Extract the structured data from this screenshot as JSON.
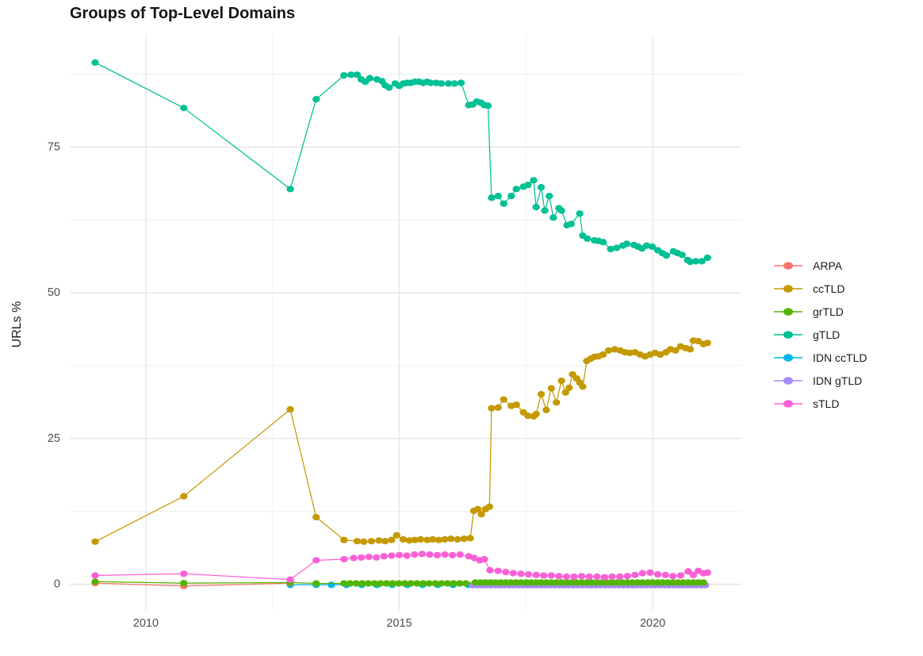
{
  "chart_data": {
    "type": "line",
    "title": "Groups of Top-Level Domains",
    "xlabel": "",
    "ylabel": "URLs %",
    "grid": true,
    "legend_position": "right",
    "x_axis": {
      "range": [
        2008.5,
        2021.75
      ],
      "major_ticks": [
        2010,
        2015,
        2020
      ],
      "minor_ticks": [
        2012.5,
        2017.5
      ],
      "tick_labels": [
        "2010",
        "2015",
        "2020"
      ]
    },
    "y_axis": {
      "range": [
        -4.55,
        94.1
      ],
      "major_ticks": [
        0,
        25,
        50,
        75
      ],
      "minor_ticks": [
        12.5,
        37.5,
        62.5,
        87.5
      ],
      "tick_labels": [
        "0",
        "25",
        "50",
        "75"
      ]
    },
    "draw_order": [
      "IDN ccTLD",
      "ARPA",
      "IDN gTLD",
      "grTLD",
      "gTLD",
      "ccTLD",
      "sTLD"
    ],
    "series": [
      {
        "name": "ARPA",
        "color": "#F8766D",
        "points": [
          [
            2009.0,
            0.2
          ],
          [
            2010.75,
            -0.3
          ],
          [
            2012.85,
            0.2
          ]
        ]
      },
      {
        "name": "ccTLD",
        "color": "#C49A00",
        "points": [
          [
            2009.0,
            7.3
          ],
          [
            2010.75,
            15.1
          ],
          [
            2012.85,
            30.0
          ],
          [
            2013.36,
            11.5
          ],
          [
            2013.91,
            7.6
          ],
          [
            2014.17,
            7.4
          ],
          [
            2014.3,
            7.3
          ],
          [
            2014.45,
            7.4
          ],
          [
            2014.6,
            7.5
          ],
          [
            2014.72,
            7.4
          ],
          [
            2014.85,
            7.6
          ],
          [
            2014.95,
            8.4
          ],
          [
            2015.08,
            7.7
          ],
          [
            2015.2,
            7.5
          ],
          [
            2015.31,
            7.6
          ],
          [
            2015.42,
            7.7
          ],
          [
            2015.55,
            7.6
          ],
          [
            2015.66,
            7.7
          ],
          [
            2015.78,
            7.6
          ],
          [
            2015.9,
            7.7
          ],
          [
            2016.02,
            7.8
          ],
          [
            2016.15,
            7.7
          ],
          [
            2016.28,
            7.8
          ],
          [
            2016.4,
            7.9
          ],
          [
            2016.47,
            12.6
          ],
          [
            2016.55,
            12.9
          ],
          [
            2016.62,
            12.0
          ],
          [
            2016.7,
            12.9
          ],
          [
            2016.78,
            13.3
          ],
          [
            2016.82,
            30.2
          ],
          [
            2016.95,
            30.3
          ],
          [
            2017.06,
            31.7
          ],
          [
            2017.21,
            30.6
          ],
          [
            2017.31,
            30.8
          ],
          [
            2017.45,
            29.5
          ],
          [
            2017.54,
            28.9
          ],
          [
            2017.65,
            28.8
          ],
          [
            2017.7,
            29.2
          ],
          [
            2017.8,
            32.6
          ],
          [
            2017.9,
            29.9
          ],
          [
            2018.0,
            33.6
          ],
          [
            2018.1,
            31.2
          ],
          [
            2018.2,
            34.9
          ],
          [
            2018.28,
            32.9
          ],
          [
            2018.35,
            33.7
          ],
          [
            2018.42,
            36.0
          ],
          [
            2018.5,
            35.3
          ],
          [
            2018.56,
            34.6
          ],
          [
            2018.62,
            33.9
          ],
          [
            2018.7,
            38.3
          ],
          [
            2018.78,
            38.7
          ],
          [
            2018.85,
            39.0
          ],
          [
            2018.93,
            39.1
          ],
          [
            2019.02,
            39.4
          ],
          [
            2019.13,
            40.1
          ],
          [
            2019.25,
            40.3
          ],
          [
            2019.36,
            40.1
          ],
          [
            2019.45,
            39.8
          ],
          [
            2019.55,
            39.7
          ],
          [
            2019.65,
            39.8
          ],
          [
            2019.75,
            39.4
          ],
          [
            2019.85,
            39.1
          ],
          [
            2019.95,
            39.4
          ],
          [
            2020.05,
            39.7
          ],
          [
            2020.15,
            39.4
          ],
          [
            2020.26,
            39.8
          ],
          [
            2020.35,
            40.3
          ],
          [
            2020.45,
            40.1
          ],
          [
            2020.55,
            40.8
          ],
          [
            2020.65,
            40.5
          ],
          [
            2020.74,
            40.3
          ],
          [
            2020.8,
            41.8
          ],
          [
            2020.9,
            41.7
          ],
          [
            2021.0,
            41.2
          ],
          [
            2021.08,
            41.4
          ]
        ]
      },
      {
        "name": "grTLD",
        "color": "#53B400",
        "points": [
          [
            2009.0,
            0.45
          ],
          [
            2010.75,
            0.2
          ],
          [
            2012.85,
            0.3
          ],
          [
            2013.36,
            0.15
          ]
        ],
        "runs": [
          {
            "from": 2013.91,
            "to": 2016.4,
            "step": 0.12,
            "value": 0.15
          },
          {
            "from": 2016.5,
            "to": 2021.08,
            "step": 0.1,
            "value": 0.3
          }
        ]
      },
      {
        "name": "gTLD",
        "color": "#00C094",
        "points": [
          [
            2009.0,
            89.5
          ],
          [
            2010.75,
            81.7
          ],
          [
            2012.85,
            67.8
          ],
          [
            2013.36,
            83.2
          ],
          [
            2013.91,
            87.3
          ],
          [
            2014.05,
            87.4
          ],
          [
            2014.17,
            87.4
          ],
          [
            2014.25,
            86.6
          ],
          [
            2014.33,
            86.2
          ],
          [
            2014.42,
            86.8
          ],
          [
            2014.56,
            86.6
          ],
          [
            2014.66,
            86.3
          ],
          [
            2014.72,
            85.6
          ],
          [
            2014.8,
            85.2
          ],
          [
            2014.92,
            85.9
          ],
          [
            2015.0,
            85.5
          ],
          [
            2015.08,
            85.9
          ],
          [
            2015.16,
            86.0
          ],
          [
            2015.23,
            86.0
          ],
          [
            2015.31,
            86.2
          ],
          [
            2015.39,
            86.2
          ],
          [
            2015.47,
            86.0
          ],
          [
            2015.55,
            86.2
          ],
          [
            2015.62,
            86.0
          ],
          [
            2015.73,
            86.0
          ],
          [
            2015.83,
            85.9
          ],
          [
            2015.97,
            85.9
          ],
          [
            2016.09,
            85.9
          ],
          [
            2016.22,
            86.0
          ],
          [
            2016.37,
            82.2
          ],
          [
            2016.45,
            82.3
          ],
          [
            2016.53,
            82.8
          ],
          [
            2016.61,
            82.6
          ],
          [
            2016.68,
            82.2
          ],
          [
            2016.75,
            82.1
          ],
          [
            2016.82,
            66.3
          ],
          [
            2016.95,
            66.6
          ],
          [
            2017.06,
            65.3
          ],
          [
            2017.21,
            66.6
          ],
          [
            2017.31,
            67.8
          ],
          [
            2017.45,
            68.2
          ],
          [
            2017.54,
            68.5
          ],
          [
            2017.65,
            69.3
          ],
          [
            2017.7,
            64.7
          ],
          [
            2017.8,
            68.1
          ],
          [
            2017.87,
            64.1
          ],
          [
            2017.96,
            66.6
          ],
          [
            2018.04,
            62.9
          ],
          [
            2018.15,
            64.5
          ],
          [
            2018.2,
            64.1
          ],
          [
            2018.31,
            61.6
          ],
          [
            2018.39,
            61.8
          ],
          [
            2018.56,
            63.6
          ],
          [
            2018.62,
            59.8
          ],
          [
            2018.71,
            59.3
          ],
          [
            2018.85,
            59.0
          ],
          [
            2018.93,
            58.9
          ],
          [
            2019.02,
            58.7
          ],
          [
            2019.17,
            57.5
          ],
          [
            2019.29,
            57.7
          ],
          [
            2019.41,
            58.1
          ],
          [
            2019.49,
            58.4
          ],
          [
            2019.63,
            58.2
          ],
          [
            2019.71,
            57.9
          ],
          [
            2019.79,
            57.6
          ],
          [
            2019.88,
            58.1
          ],
          [
            2019.99,
            57.9
          ],
          [
            2020.1,
            57.3
          ],
          [
            2020.19,
            56.8
          ],
          [
            2020.27,
            56.4
          ],
          [
            2020.41,
            57.1
          ],
          [
            2020.49,
            56.8
          ],
          [
            2020.58,
            56.5
          ],
          [
            2020.69,
            55.6
          ],
          [
            2020.74,
            55.3
          ],
          [
            2020.85,
            55.4
          ],
          [
            2020.97,
            55.4
          ],
          [
            2021.08,
            56.0
          ]
        ]
      },
      {
        "name": "IDN ccTLD",
        "color": "#00B6EB",
        "points": [
          [
            2012.85,
            -0.1
          ]
        ],
        "runs": [
          {
            "from": 2013.36,
            "to": 2021.05,
            "step": 0.3,
            "value": -0.1
          }
        ]
      },
      {
        "name": "IDN gTLD",
        "color": "#A58AFF",
        "points": [],
        "runs": [
          {
            "from": 2016.45,
            "to": 2021.05,
            "step": 0.09,
            "value": -0.15
          }
        ]
      },
      {
        "name": "sTLD",
        "color": "#FB61D7",
        "points": [
          [
            2009.0,
            1.5
          ],
          [
            2010.75,
            1.8
          ],
          [
            2012.85,
            0.8
          ],
          [
            2013.36,
            4.1
          ],
          [
            2013.91,
            4.3
          ],
          [
            2014.1,
            4.5
          ],
          [
            2014.25,
            4.6
          ],
          [
            2014.4,
            4.7
          ],
          [
            2014.55,
            4.6
          ],
          [
            2014.7,
            4.8
          ],
          [
            2014.85,
            4.9
          ],
          [
            2015.0,
            5.0
          ],
          [
            2015.15,
            4.9
          ],
          [
            2015.3,
            5.1
          ],
          [
            2015.45,
            5.2
          ],
          [
            2015.6,
            5.1
          ],
          [
            2015.75,
            5.0
          ],
          [
            2015.9,
            5.1
          ],
          [
            2016.05,
            5.0
          ],
          [
            2016.2,
            5.1
          ],
          [
            2016.37,
            4.8
          ],
          [
            2016.48,
            4.5
          ],
          [
            2016.59,
            4.1
          ],
          [
            2016.68,
            4.3
          ],
          [
            2016.79,
            2.4
          ],
          [
            2016.95,
            2.3
          ],
          [
            2017.1,
            2.1
          ],
          [
            2017.25,
            1.9
          ],
          [
            2017.4,
            1.8
          ],
          [
            2017.55,
            1.7
          ],
          [
            2017.7,
            1.6
          ],
          [
            2017.85,
            1.5
          ],
          [
            2018.0,
            1.5
          ],
          [
            2018.15,
            1.4
          ],
          [
            2018.3,
            1.3
          ],
          [
            2018.45,
            1.3
          ],
          [
            2018.6,
            1.4
          ],
          [
            2018.75,
            1.3
          ],
          [
            2018.9,
            1.3
          ],
          [
            2019.05,
            1.2
          ],
          [
            2019.2,
            1.3
          ],
          [
            2019.35,
            1.3
          ],
          [
            2019.5,
            1.4
          ],
          [
            2019.65,
            1.6
          ],
          [
            2019.8,
            1.9
          ],
          [
            2019.95,
            2.0
          ],
          [
            2020.1,
            1.7
          ],
          [
            2020.25,
            1.6
          ],
          [
            2020.4,
            1.4
          ],
          [
            2020.55,
            1.5
          ],
          [
            2020.7,
            2.2
          ],
          [
            2020.8,
            1.6
          ],
          [
            2020.9,
            2.3
          ],
          [
            2021.0,
            1.9
          ],
          [
            2021.08,
            2.0
          ]
        ]
      }
    ]
  },
  "style_colors": {
    "grid_major": "#E4E4E4",
    "grid_minor": "#F1F1F1",
    "tick_label": "#4D4D4D",
    "text": "#1A1A1A",
    "background": "#FFFFFF"
  }
}
